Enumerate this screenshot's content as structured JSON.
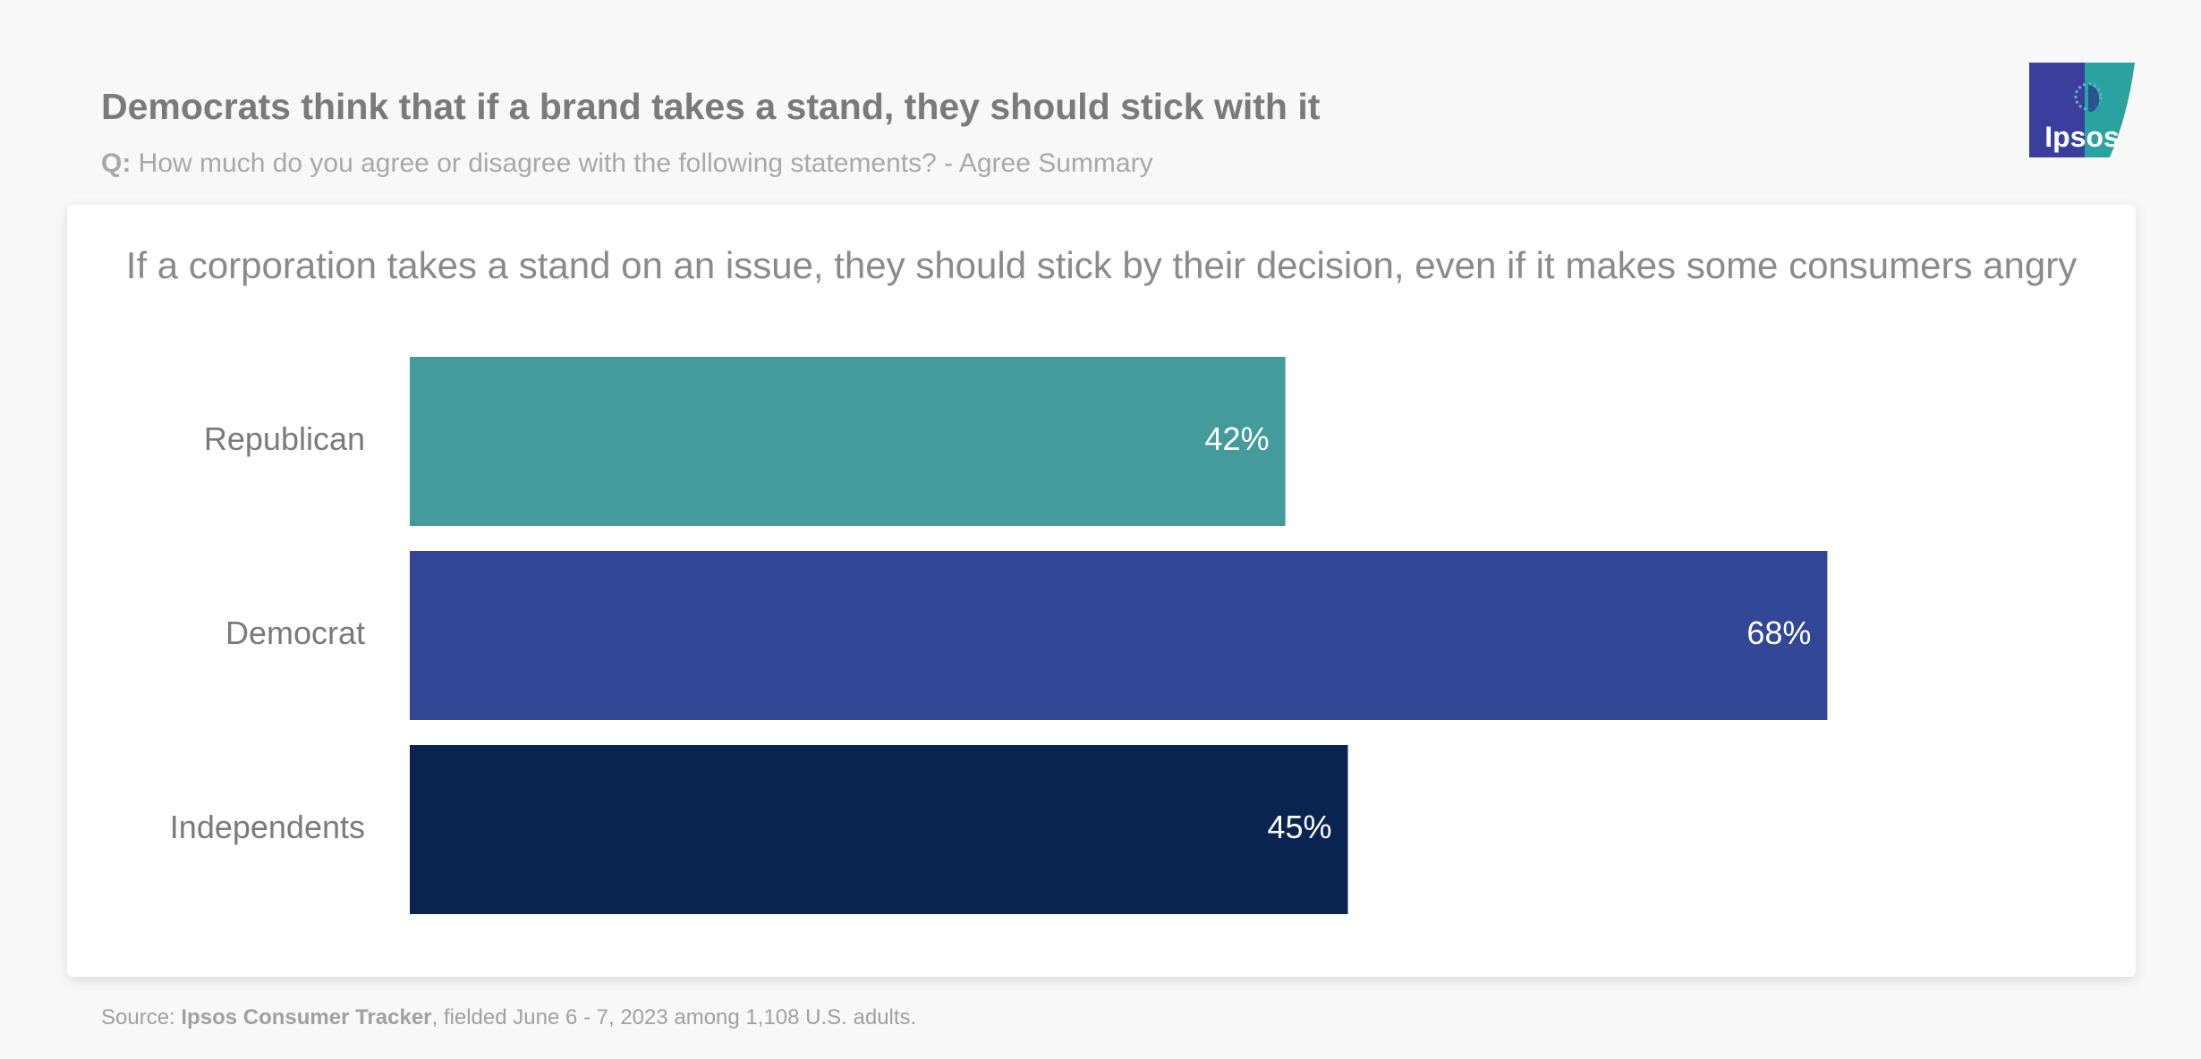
{
  "header": {
    "title": "Democrats think that if a brand takes a stand, they should stick with it",
    "question_prefix": "Q:",
    "question_text": "How much do you agree or disagree with the following statements? - Agree Summary"
  },
  "logo": {
    "icon": "ipsos-logo",
    "text": "Ipsos",
    "colors": {
      "left": "#3a3f9e",
      "right": "#2aa3a0"
    }
  },
  "chart_data": {
    "type": "bar",
    "orientation": "horizontal",
    "title": "If a corporation takes a stand on an issue, they should stick by their decision, even if it makes some consumers angry",
    "categories": [
      "Republican",
      "Democrat",
      "Independents"
    ],
    "values": [
      42,
      68,
      45
    ],
    "value_labels": [
      "42%",
      "68%",
      "45%"
    ],
    "colors": [
      "#459b9c",
      "#324795",
      "#0a2451"
    ],
    "xlim": [
      0,
      100
    ],
    "grid": false,
    "legend": "none"
  },
  "footer": {
    "source_prefix": "Source:",
    "source_name": "Ipsos Consumer Tracker",
    "source_rest": ", fielded June 6 - 7, 2023 among 1,108 U.S. adults."
  }
}
